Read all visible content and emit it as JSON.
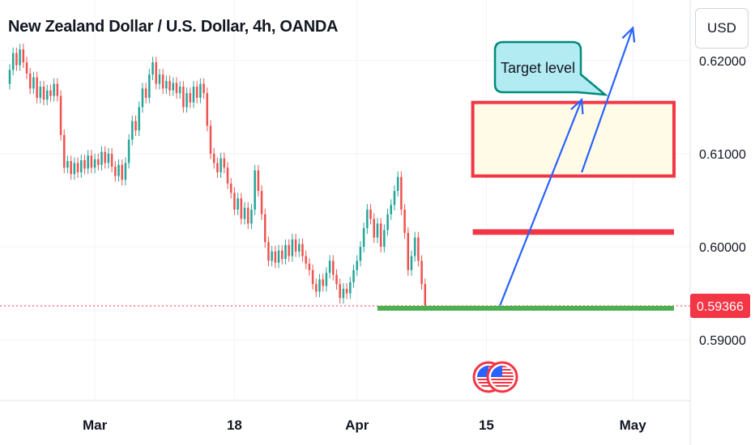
{
  "header": {
    "title": "New Zealand Dollar / U.S. Dollar, 4h, OANDA",
    "currency": "USD"
  },
  "annotations": {
    "target_label": "Target level"
  },
  "colors": {
    "up": "#26a69a",
    "down": "#ef5350",
    "zone_border": "#f23645",
    "zone_fill": "#fffbe6",
    "support": "#4caf50",
    "arrow": "#2962ff",
    "callout_fill": "#b2ebf2",
    "callout_border": "#00897b",
    "price_tag": "#f23645"
  },
  "chart_data": {
    "type": "candlestick",
    "title": "New Zealand Dollar / U.S. Dollar, 4h, OANDA",
    "ylim": [
      0.5835,
      0.6265
    ],
    "y_ticks": [
      {
        "value": 0.62,
        "label": "0.62000"
      },
      {
        "value": 0.61,
        "label": "0.61000"
      },
      {
        "value": 0.6,
        "label": "0.60000"
      },
      {
        "value": 0.59,
        "label": "0.59000"
      }
    ],
    "x_ticks": [
      "Mar",
      "18",
      "Apr",
      "15",
      "May"
    ],
    "x_tick_index": [
      25,
      66,
      102,
      140,
      183
    ],
    "x_range": [
      0,
      197
    ],
    "current_price": {
      "value": 0.59366,
      "label": "0.59366"
    },
    "series": [
      {
        "points": [
          [
            0.6175,
            0.619
          ],
          [
            0.619,
            0.6208
          ],
          [
            0.6208,
            0.6195
          ],
          [
            0.6195,
            0.6212
          ],
          [
            0.6212,
            0.6198
          ],
          [
            0.6198,
            0.6186
          ],
          [
            0.6186,
            0.617
          ],
          [
            0.617,
            0.6182
          ],
          [
            0.6182,
            0.616
          ],
          [
            0.616,
            0.6172
          ],
          [
            0.6172,
            0.6158
          ],
          [
            0.6158,
            0.6168
          ],
          [
            0.6168,
            0.6162
          ],
          [
            0.6162,
            0.6175
          ],
          [
            0.6175,
            0.6162
          ],
          [
            0.6162,
            0.612
          ],
          [
            0.612,
            0.6085
          ],
          [
            0.6085,
            0.6092
          ],
          [
            0.6092,
            0.6078
          ],
          [
            0.6078,
            0.609
          ],
          [
            0.609,
            0.608
          ],
          [
            0.608,
            0.6093
          ],
          [
            0.6093,
            0.6084
          ],
          [
            0.6084,
            0.6098
          ],
          [
            0.6098,
            0.6085
          ],
          [
            0.6085,
            0.6094
          ],
          [
            0.6094,
            0.6088
          ],
          [
            0.6088,
            0.6102
          ],
          [
            0.6102,
            0.609
          ],
          [
            0.609,
            0.61
          ],
          [
            0.61,
            0.6086
          ],
          [
            0.6086,
            0.6076
          ],
          [
            0.6076,
            0.6088
          ],
          [
            0.6088,
            0.6072
          ],
          [
            0.6072,
            0.609
          ],
          [
            0.609,
            0.6115
          ],
          [
            0.6115,
            0.6135
          ],
          [
            0.6135,
            0.6125
          ],
          [
            0.6125,
            0.615
          ],
          [
            0.615,
            0.617
          ],
          [
            0.617,
            0.616
          ],
          [
            0.616,
            0.6185
          ],
          [
            0.6185,
            0.6198
          ],
          [
            0.6198,
            0.6175
          ],
          [
            0.6175,
            0.6185
          ],
          [
            0.6185,
            0.617
          ],
          [
            0.617,
            0.6178
          ],
          [
            0.6178,
            0.6168
          ],
          [
            0.6168,
            0.6176
          ],
          [
            0.6176,
            0.6165
          ],
          [
            0.6165,
            0.6172
          ],
          [
            0.6172,
            0.615
          ],
          [
            0.615,
            0.6165
          ],
          [
            0.6165,
            0.6155
          ],
          [
            0.6155,
            0.6172
          ],
          [
            0.6172,
            0.616
          ],
          [
            0.616,
            0.6175
          ],
          [
            0.6175,
            0.6165
          ],
          [
            0.6165,
            0.613
          ],
          [
            0.613,
            0.61
          ],
          [
            0.61,
            0.609
          ],
          [
            0.609,
            0.608
          ],
          [
            0.608,
            0.6095
          ],
          [
            0.6095,
            0.6085
          ],
          [
            0.6085,
            0.6068
          ],
          [
            0.6068,
            0.6058
          ],
          [
            0.6058,
            0.604
          ],
          [
            0.604,
            0.6052
          ],
          [
            0.6052,
            0.603
          ],
          [
            0.603,
            0.6042
          ],
          [
            0.6042,
            0.6025
          ],
          [
            0.6025,
            0.604
          ],
          [
            0.604,
            0.6082
          ],
          [
            0.6082,
            0.606
          ],
          [
            0.606,
            0.6035
          ],
          [
            0.6035,
            0.6005
          ],
          [
            0.6005,
            0.5985
          ],
          [
            0.5985,
            0.5995
          ],
          [
            0.5995,
            0.5983
          ],
          [
            0.5983,
            0.5996
          ],
          [
            0.5996,
            0.5987
          ],
          [
            0.5987,
            0.6002
          ],
          [
            0.6002,
            0.599
          ],
          [
            0.599,
            0.6008
          ],
          [
            0.6008,
            0.5995
          ],
          [
            0.5995,
            0.6003
          ],
          [
            0.6003,
            0.599
          ],
          [
            0.599,
            0.5982
          ],
          [
            0.5982,
            0.5975
          ],
          [
            0.5975,
            0.596
          ],
          [
            0.596,
            0.5952
          ],
          [
            0.5952,
            0.5965
          ],
          [
            0.5965,
            0.5958
          ],
          [
            0.5958,
            0.5972
          ],
          [
            0.5972,
            0.5985
          ],
          [
            0.5985,
            0.597
          ],
          [
            0.597,
            0.596
          ],
          [
            0.596,
            0.5945
          ],
          [
            0.5945,
            0.5955
          ],
          [
            0.5955,
            0.595
          ],
          [
            0.595,
            0.5962
          ],
          [
            0.5962,
            0.5975
          ],
          [
            0.5975,
            0.5985
          ],
          [
            0.5985,
            0.6
          ],
          [
            0.6,
            0.602
          ],
          [
            0.602,
            0.604
          ],
          [
            0.604,
            0.603
          ],
          [
            0.603,
            0.601
          ],
          [
            0.601,
            0.6025
          ],
          [
            0.6025,
            0.6
          ],
          [
            0.6,
            0.6018
          ],
          [
            0.6018,
            0.6035
          ],
          [
            0.6035,
            0.6045
          ],
          [
            0.6045,
            0.606
          ],
          [
            0.606,
            0.6075
          ],
          [
            0.6075,
            0.604
          ],
          [
            0.604,
            0.6015
          ],
          [
            0.6015,
            0.5975
          ],
          [
            0.5975,
            0.599
          ],
          [
            0.599,
            0.601
          ],
          [
            0.601,
            0.5985
          ],
          [
            0.5985,
            0.596
          ],
          [
            0.596,
            0.5937
          ]
        ]
      }
    ],
    "zones": [
      {
        "y0": 0.6076,
        "y1": 0.6155,
        "x_start": 136,
        "x_end": 210,
        "style": "box"
      },
      {
        "y0": 0.6012,
        "y1": 0.6018,
        "x_start": 136,
        "x_end": 210,
        "style": "band"
      }
    ],
    "support_line": {
      "value": 0.5934,
      "x_start": 108,
      "x_end": 210
    },
    "arrows": [
      {
        "from": [
          144,
          0.5937
        ],
        "to": [
          168,
          0.6158
        ]
      },
      {
        "from": [
          168,
          0.608
        ],
        "to": [
          183,
          0.6235
        ]
      }
    ],
    "events": [
      "us-flag-icon",
      "us-flag-icon"
    ]
  }
}
